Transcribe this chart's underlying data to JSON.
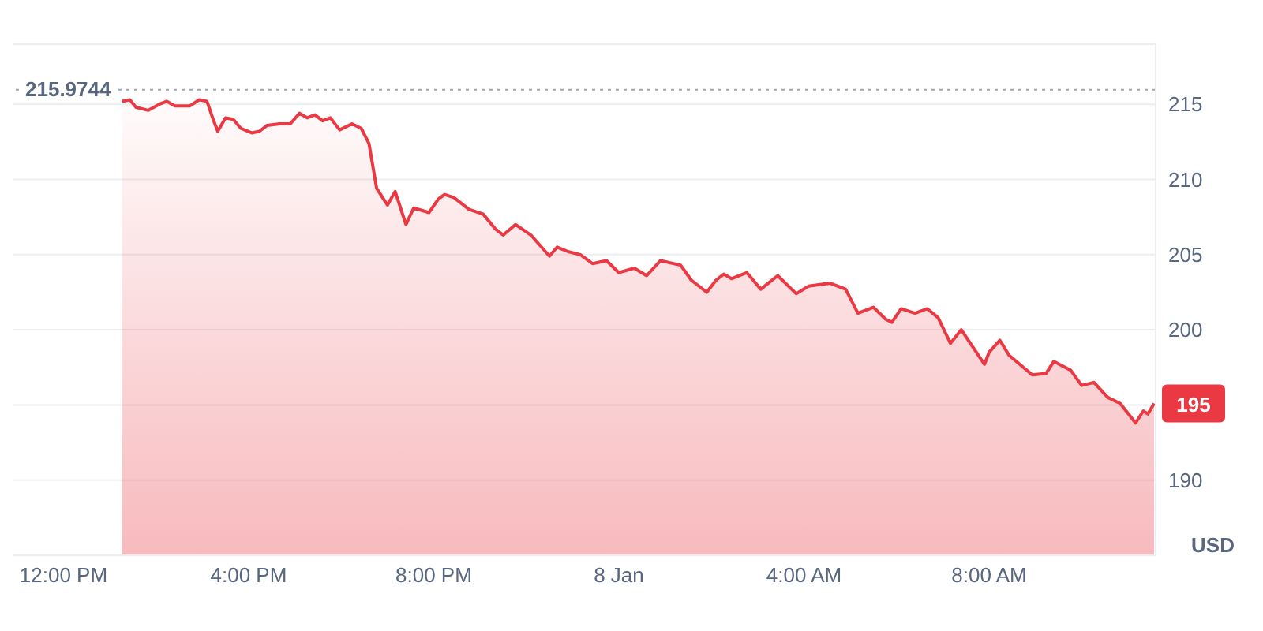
{
  "chart_data": {
    "type": "area",
    "ylabel": "USD",
    "x": [
      "--01-07T13:16",
      "--01-07T13:26",
      "--01-07T13:34",
      "--01-07T13:50",
      "--01-07T14:04",
      "--01-07T14:14",
      "--01-07T14:24",
      "--01-07T14:44",
      "--01-07T14:56",
      "--01-07T15:06",
      "--01-07T15:14",
      "--01-07T15:20",
      "--01-07T15:30",
      "--01-07T15:40",
      "--01-07T15:50",
      "--01-07T16:04",
      "--01-07T16:14",
      "--01-07T16:24",
      "--01-07T16:40",
      "--01-07T16:54",
      "--01-07T17:06",
      "--01-07T17:16",
      "--01-07T17:26",
      "--01-07T17:36",
      "--01-07T17:46",
      "--01-07T17:58",
      "--01-07T18:14",
      "--01-07T18:26",
      "--01-07T18:36",
      "--01-07T18:46",
      "--01-07T19:00",
      "--01-07T19:10",
      "--01-07T19:24",
      "--01-07T19:34",
      "--01-07T19:54",
      "--01-07T20:06",
      "--01-07T20:14",
      "--01-07T20:26",
      "--01-07T20:46",
      "--01-07T21:04",
      "--01-07T21:20",
      "--01-07T21:30",
      "--01-07T21:46",
      "--01-07T22:06",
      "--01-07T22:30",
      "--01-07T22:40",
      "--01-07T22:54",
      "--01-07T23:10",
      "--01-07T23:26",
      "--01-07T23:44",
      "--01-08T00:00",
      "--01-08T00:20",
      "--01-08T00:36",
      "--01-08T00:54",
      "--01-08T01:20",
      "--01-08T01:34",
      "--01-08T01:54",
      "--01-08T02:06",
      "--01-08T02:16",
      "--01-08T02:26",
      "--01-08T02:46",
      "--01-08T03:04",
      "--01-08T03:26",
      "--01-08T03:50",
      "--01-08T04:06",
      "--01-08T04:34",
      "--01-08T04:54",
      "--01-08T05:10",
      "--01-08T05:30",
      "--01-08T05:46",
      "--01-08T05:54",
      "--01-08T06:06",
      "--01-08T06:24",
      "--01-08T06:40",
      "--01-08T06:54",
      "--01-08T07:10",
      "--01-08T07:24",
      "--01-08T07:54",
      "--01-08T08:00",
      "--01-08T08:14",
      "--01-08T08:26",
      "--01-08T08:56",
      "--01-08T09:14",
      "--01-08T09:24",
      "--01-08T09:46",
      "--01-08T10:00",
      "--01-08T10:16",
      "--01-08T10:34",
      "--01-08T10:50",
      "--01-08T11:10",
      "--01-08T11:20",
      "--01-08T11:26",
      "--01-08T11:34"
    ],
    "series": [
      {
        "color": "#ea3943",
        "values": [
          215.2,
          215.3,
          214.8,
          214.6,
          215.0,
          215.2,
          214.9,
          214.9,
          215.3,
          215.2,
          214.0,
          213.2,
          214.1,
          214.0,
          213.4,
          213.1,
          213.2,
          213.6,
          213.7,
          213.7,
          214.4,
          214.1,
          214.3,
          213.9,
          214.1,
          213.3,
          213.7,
          213.4,
          212.4,
          209.4,
          208.3,
          209.2,
          207.0,
          208.1,
          207.8,
          208.7,
          209.0,
          208.8,
          208.0,
          207.7,
          206.7,
          206.3,
          207.0,
          206.3,
          204.9,
          205.5,
          205.2,
          205.0,
          204.4,
          204.6,
          203.8,
          204.1,
          203.6,
          204.6,
          204.3,
          203.3,
          202.5,
          203.3,
          203.7,
          203.4,
          203.8,
          202.7,
          203.6,
          202.4,
          202.9,
          203.1,
          202.7,
          201.1,
          201.5,
          200.7,
          200.5,
          201.4,
          201.1,
          201.4,
          200.8,
          199.1,
          200.0,
          197.7,
          198.5,
          199.3,
          198.3,
          197.0,
          197.1,
          197.9,
          197.3,
          196.3,
          196.5,
          195.5,
          195.1,
          193.8,
          194.6,
          194.4,
          195.1
        ]
      }
    ],
    "xlim": [
      "--01-07T10:54",
      "--01-08T11:36"
    ],
    "xticks": [
      {
        "value": "--01-07T12:00",
        "label": "12:00 PM"
      },
      {
        "value": "--01-07T16:00",
        "label": "4:00 PM"
      },
      {
        "value": "--01-07T20:00",
        "label": "8:00 PM"
      },
      {
        "value": "--01-08T00:00",
        "label": "8 Jan"
      },
      {
        "value": "--01-08T04:00",
        "label": "4:00 AM"
      },
      {
        "value": "--01-08T08:00",
        "label": "8:00 AM"
      }
    ],
    "ylim": [
      185,
      219
    ],
    "yticks": [
      190,
      {
        "value": 195,
        "label": null
      },
      200,
      205,
      210,
      215
    ],
    "grid": "y",
    "legend": false,
    "marker": "none",
    "line_style": "solid",
    "ref_lines": [
      {
        "axis": "y",
        "value": 215.9744,
        "label": "215.9744",
        "color": "#a0a6b0",
        "line_style": "dotted"
      }
    ],
    "annotations": [
      "195"
    ]
  }
}
